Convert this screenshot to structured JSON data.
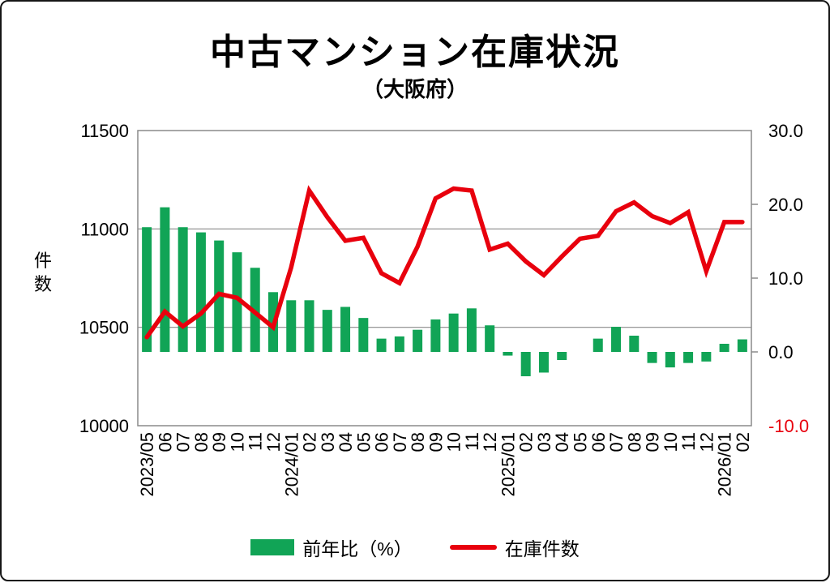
{
  "title": "中古マンション在庫状況",
  "subtitle": "（大阪府）",
  "chart_data": {
    "type": "bar+line combo",
    "categories": [
      "2023/05",
      "06",
      "07",
      "08",
      "09",
      "10",
      "11",
      "12",
      "2024/01",
      "02",
      "03",
      "04",
      "05",
      "06",
      "07",
      "08",
      "09",
      "10",
      "11",
      "12",
      "2025/01",
      "02",
      "03",
      "04",
      "05",
      "06",
      "07",
      "08",
      "09",
      "10",
      "11",
      "12",
      "2026/01",
      "02"
    ],
    "series": [
      {
        "name": "前年比（%）",
        "type": "bar",
        "axis": "right",
        "color": "#11A456",
        "values": [
          16.9,
          19.6,
          16.9,
          16.2,
          15.1,
          13.5,
          11.4,
          8.1,
          7.0,
          7.0,
          5.7,
          6.1,
          4.6,
          1.8,
          2.1,
          3.0,
          4.4,
          5.2,
          5.9,
          3.6,
          -0.5,
          -3.3,
          -2.8,
          -1.1,
          0.0,
          1.8,
          3.4,
          2.2,
          -1.5,
          -2.1,
          -1.5,
          -1.3,
          1.1,
          1.7
        ]
      },
      {
        "name": "在庫件数",
        "type": "line",
        "axis": "left",
        "color": "#E8000D",
        "values": [
          10450,
          10580,
          10505,
          10570,
          10670,
          10650,
          10575,
          10500,
          10805,
          11195,
          11060,
          10940,
          10955,
          10775,
          10725,
          10910,
          11155,
          11205,
          11195,
          10895,
          10925,
          10835,
          10765,
          10860,
          10950,
          10965,
          11090,
          11135,
          11065,
          11030,
          11085,
          10785,
          11035,
          11035
        ]
      }
    ],
    "left_axis": {
      "label": "件数",
      "min": 10000,
      "max": 11500,
      "ticks": [
        "11500",
        "11000",
        "10500",
        "10000"
      ]
    },
    "right_axis": {
      "min": -10,
      "max": 30,
      "ticks": [
        "30.0",
        "20.0",
        "10.0",
        "0.0",
        "-10.0"
      ],
      "negative_tick_color": "#E8000D"
    },
    "gridlines": [
      11000,
      10500
    ],
    "grid_color": "#8a8a8a",
    "legend_position": "bottom"
  }
}
